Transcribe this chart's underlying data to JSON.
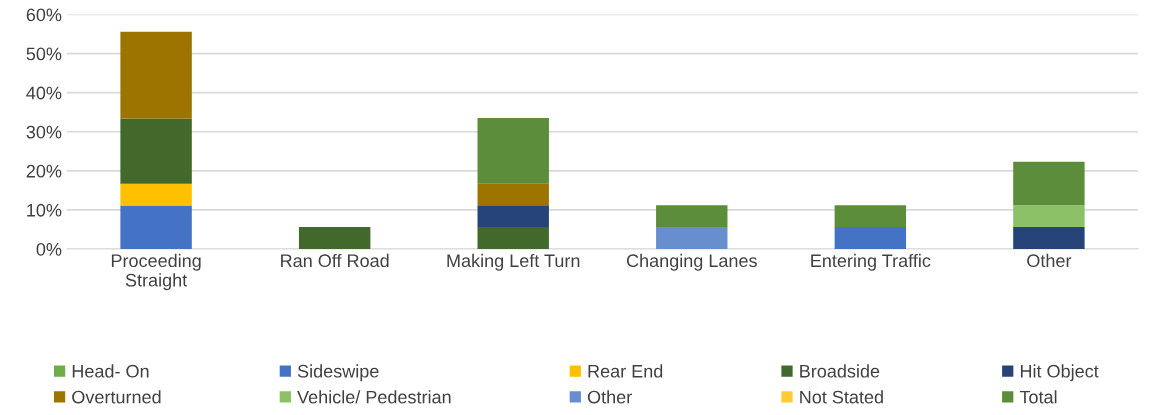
{
  "chart_data": {
    "type": "bar",
    "stacked": true,
    "categories": [
      "Proceeding\nStraight",
      "Ran Off Road",
      "Making Left Turn",
      "Changing Lanes",
      "Entering Traffic",
      "Other"
    ],
    "series": [
      {
        "name": "Head- On",
        "color": "#70ad47",
        "values": [
          null,
          null,
          null,
          null,
          null,
          null
        ]
      },
      {
        "name": "Sideswipe",
        "color": "#4472c4",
        "values": [
          11.1,
          null,
          null,
          null,
          5.6,
          null
        ]
      },
      {
        "name": "Rear End",
        "color": "#ffc000",
        "values": [
          5.6,
          null,
          null,
          null,
          null,
          null
        ]
      },
      {
        "name": "Broadside",
        "color": "#43682b",
        "values": [
          16.7,
          5.6,
          5.6,
          null,
          null,
          null
        ]
      },
      {
        "name": "Hit Object",
        "color": "#264478",
        "values": [
          null,
          null,
          5.6,
          null,
          null,
          5.6
        ]
      },
      {
        "name": "Overturned",
        "color": "#9e7400",
        "values": [
          22.2,
          null,
          5.6,
          null,
          null,
          null
        ]
      },
      {
        "name": "Vehicle/ Pedestrian",
        "color": "#8cc168",
        "values": [
          null,
          null,
          null,
          null,
          null,
          5.6
        ]
      },
      {
        "name": "Other",
        "color": "#698ed0",
        "values": [
          null,
          null,
          null,
          5.6,
          null,
          null
        ]
      },
      {
        "name": "Not Stated",
        "color": "#ffcd33",
        "values": [
          null,
          null,
          null,
          null,
          null,
          null
        ]
      },
      {
        "name": "Total",
        "color": "#5b8d3a",
        "values": [
          null,
          null,
          16.7,
          5.6,
          5.6,
          11.1
        ]
      }
    ],
    "ylim": [
      0,
      60
    ],
    "yticks": [
      {
        "value": 0,
        "label": "0%"
      },
      {
        "value": 10,
        "label": "10%"
      },
      {
        "value": 20,
        "label": "20%"
      },
      {
        "value": 30,
        "label": "30%"
      },
      {
        "value": 40,
        "label": "40%"
      },
      {
        "value": 50,
        "label": "50%"
      },
      {
        "value": 60,
        "label": "60%"
      }
    ],
    "grid": "y",
    "legend": "bottom"
  }
}
